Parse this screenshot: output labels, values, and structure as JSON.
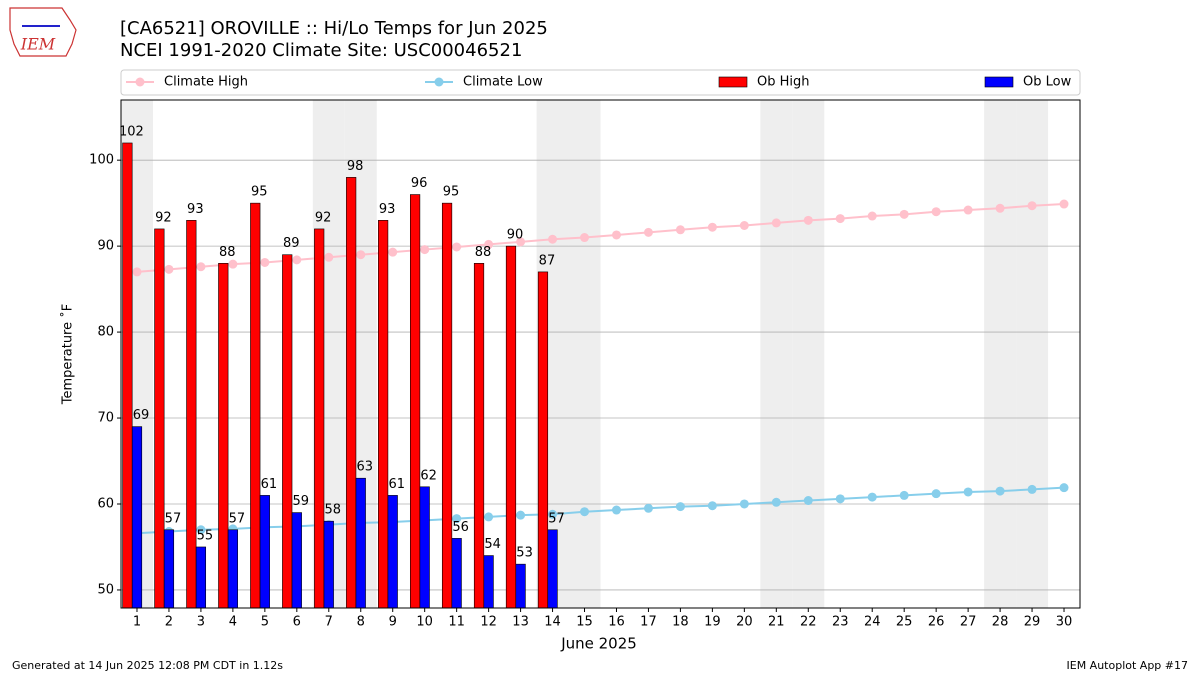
{
  "logo": "IEM",
  "footer_left": "Generated at 14 Jun 2025 12:08 PM CDT in 1.12s",
  "footer_right": "IEM Autoplot App #17",
  "chart_data": {
    "type": "bar",
    "title": "[CA6521] OROVILLE :: Hi/Lo Temps for Jun 2025",
    "subtitle": "NCEI 1991-2020 Climate Site: USC00046521",
    "x_label": "June 2025",
    "y_label": "Temperature ˚F",
    "x": [
      1,
      2,
      3,
      4,
      5,
      6,
      7,
      8,
      9,
      10,
      11,
      12,
      13,
      14,
      15,
      16,
      17,
      18,
      19,
      20,
      21,
      22,
      23,
      24,
      25,
      26,
      27,
      28,
      29,
      30
    ],
    "xlim": [
      0.5,
      30.5
    ],
    "xticks": [
      1,
      2,
      3,
      4,
      5,
      6,
      7,
      8,
      9,
      10,
      11,
      12,
      13,
      14,
      15,
      16,
      17,
      18,
      19,
      20,
      21,
      22,
      23,
      24,
      25,
      26,
      27,
      28,
      29,
      30
    ],
    "ylim": [
      47.9,
      107
    ],
    "yticks": [
      50,
      60,
      70,
      80,
      90,
      100
    ],
    "grid": true,
    "weekend_shading": [
      1,
      7,
      8,
      14,
      15,
      21,
      22,
      28,
      29
    ],
    "series": [
      {
        "name": "Climate High",
        "type": "line",
        "color": "#ffc0cb",
        "values": [
          87.0,
          87.3,
          87.6,
          87.9,
          88.1,
          88.4,
          88.7,
          89.0,
          89.3,
          89.6,
          89.9,
          90.2,
          90.5,
          90.8,
          91.0,
          91.3,
          91.6,
          91.9,
          92.2,
          92.4,
          92.7,
          93.0,
          93.2,
          93.5,
          93.7,
          94.0,
          94.2,
          94.4,
          94.7,
          94.9
        ]
      },
      {
        "name": "Climate Low",
        "type": "line",
        "color": "#87ceeb",
        "values": [
          56.6,
          56.8,
          57.0,
          57.1,
          57.3,
          57.4,
          57.6,
          57.8,
          57.9,
          58.1,
          58.3,
          58.5,
          58.7,
          58.8,
          59.1,
          59.3,
          59.5,
          59.7,
          59.8,
          60.0,
          60.2,
          60.4,
          60.6,
          60.8,
          61.0,
          61.2,
          61.4,
          61.5,
          61.7,
          61.9
        ]
      },
      {
        "name": "Ob High",
        "type": "bar",
        "color": "#ff0000",
        "values": [
          102,
          92,
          93,
          88,
          95,
          89,
          92,
          98,
          93,
          96,
          95,
          88,
          90,
          87,
          null,
          null,
          null,
          null,
          null,
          null,
          null,
          null,
          null,
          null,
          null,
          null,
          null,
          null,
          null,
          null
        ]
      },
      {
        "name": "Ob Low",
        "type": "bar",
        "color": "#0000ff",
        "values": [
          69,
          57,
          55,
          57,
          61,
          59,
          58,
          63,
          61,
          62,
          56,
          54,
          53,
          57,
          null,
          null,
          null,
          null,
          null,
          null,
          null,
          null,
          null,
          null,
          null,
          null,
          null,
          null,
          null,
          null
        ]
      }
    ]
  }
}
